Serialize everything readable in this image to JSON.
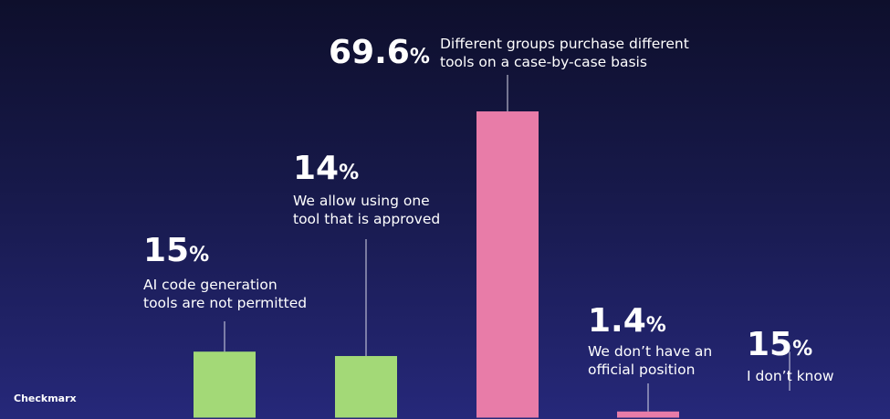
{
  "chart_data": {
    "type": "bar",
    "categories": [
      "AI code generation tools are not permitted",
      "We allow using one tool that is approved",
      "Different groups purchase different tools on a case-by-case basis",
      "We don’t have an official position",
      "I don’t know"
    ],
    "values": [
      15,
      14,
      69.6,
      1.4,
      15
    ],
    "value_labels": [
      "15%",
      "14%",
      "69.6%",
      "1.4%",
      "15%"
    ],
    "colors": [
      "#a3d977",
      "#a3d977",
      "#e87ca8",
      "#e87ca8",
      "transparent"
    ]
  },
  "brand": "Checkmarx"
}
